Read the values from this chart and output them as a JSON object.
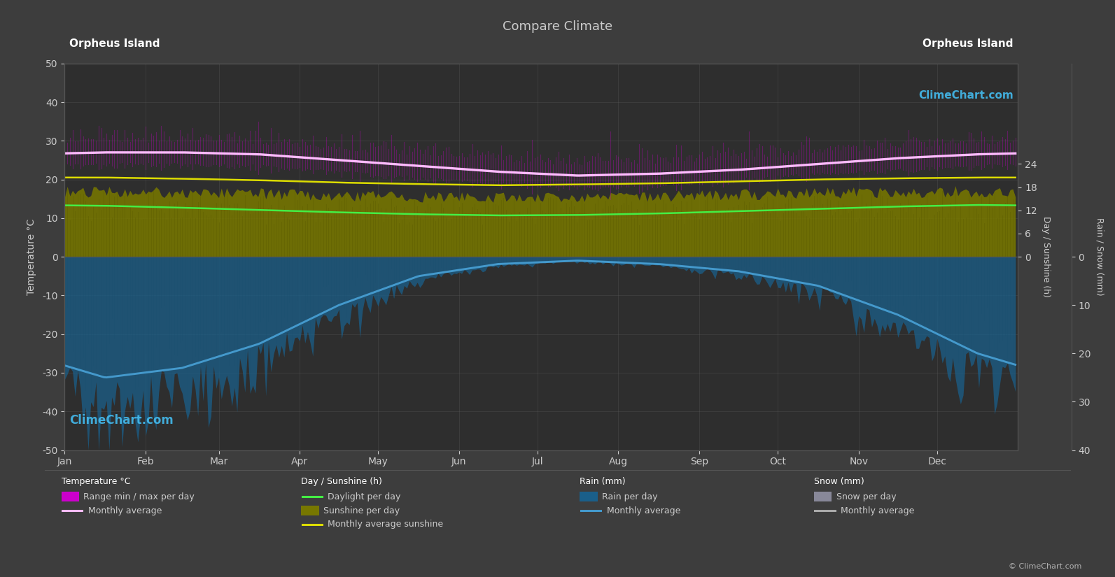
{
  "title": "Compare Climate",
  "location_left": "Orpheus Island",
  "location_right": "Orpheus Island",
  "bg_color": "#3d3d3d",
  "plot_bg_color": "#2e2e2e",
  "grid_color": "#555555",
  "text_color": "#cccccc",
  "months": [
    "Jan",
    "Feb",
    "Mar",
    "Apr",
    "May",
    "Jun",
    "Jul",
    "Aug",
    "Sep",
    "Oct",
    "Nov",
    "Dec"
  ],
  "days_per_month": [
    31,
    28,
    31,
    30,
    31,
    30,
    31,
    31,
    30,
    31,
    30,
    31
  ],
  "temp_max_monthly": [
    29.5,
    29.5,
    29.0,
    27.5,
    26.0,
    24.5,
    23.5,
    24.0,
    25.0,
    26.5,
    28.0,
    29.0
  ],
  "temp_min_monthly": [
    24.5,
    24.5,
    24.0,
    22.5,
    21.0,
    19.5,
    18.5,
    19.0,
    20.5,
    22.0,
    23.0,
    24.0
  ],
  "temp_avg_monthly": [
    27.0,
    27.0,
    26.5,
    25.0,
    23.5,
    22.0,
    21.0,
    21.5,
    22.5,
    24.0,
    25.5,
    26.5
  ],
  "daylight_monthly": [
    13.2,
    12.7,
    12.1,
    11.5,
    11.0,
    10.7,
    10.8,
    11.2,
    11.8,
    12.4,
    13.0,
    13.4
  ],
  "sunshine_monthly": [
    20.5,
    20.2,
    19.8,
    19.2,
    18.8,
    18.5,
    18.7,
    19.0,
    19.5,
    20.0,
    20.3,
    20.5
  ],
  "rain_mm_monthly": [
    25.0,
    23.0,
    18.0,
    10.0,
    4.0,
    1.5,
    0.8,
    1.5,
    3.0,
    6.0,
    12.0,
    20.0
  ],
  "color_temp_range": "#cc00cc",
  "color_daylight": "#44ee44",
  "color_temp_avg": "#ffbbff",
  "color_sunshine_fill": "#777700",
  "color_sunshine_avg": "#dddd00",
  "color_rain_fill": "#1a5f8a",
  "color_rain_avg": "#4499cc",
  "color_snow_fill": "#888899",
  "ylim_left": [
    -50,
    50
  ],
  "left_yticks": [
    -50,
    -40,
    -30,
    -20,
    -10,
    0,
    10,
    20,
    30,
    40,
    50
  ],
  "right_sunshine_yticks": [
    0,
    6,
    12,
    18,
    24
  ],
  "right_rain_yticks": [
    0,
    10,
    20,
    30,
    40
  ],
  "rain_scale": 1.25
}
